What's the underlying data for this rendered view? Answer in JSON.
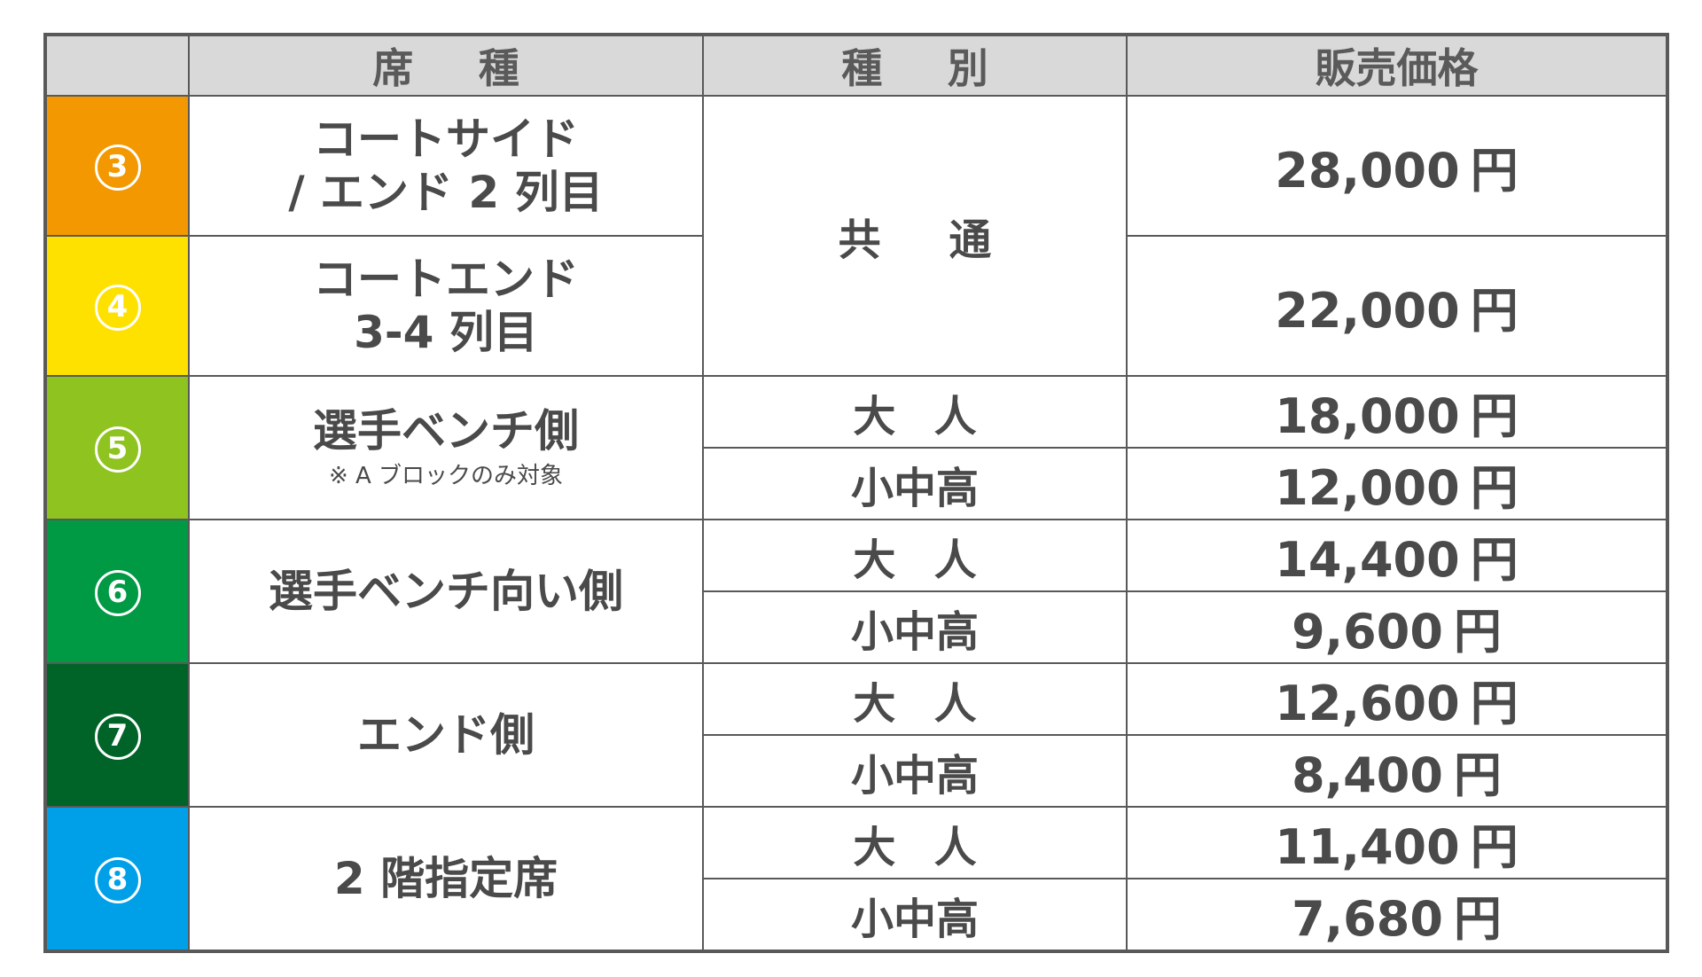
{
  "header": {
    "col_num": "",
    "col_seat": "席種",
    "col_type": "種別",
    "col_price": "販売価格"
  },
  "currency": "円",
  "colors": {
    "border": "#595959",
    "header_bg": "#d9d9d9",
    "text": "#4a4a4a"
  },
  "rows": [
    {
      "number": "3",
      "color": "#f39800",
      "seat_line1": "コートサイド",
      "seat_line2": "/ エンド 2 列目",
      "type": "共通",
      "price": "28,000"
    },
    {
      "number": "4",
      "color": "#ffe100",
      "seat_line1": "コートエンド",
      "seat_line2": "3-4 列目",
      "price": "22,000"
    },
    {
      "number": "5",
      "color": "#8fc31f",
      "seat": "選手ベンチ側",
      "note": "※ A ブロックのみ対象",
      "adult_label": "大人",
      "child_label": "小中高",
      "adult_price": "18,000",
      "child_price": "12,000"
    },
    {
      "number": "6",
      "color": "#009944",
      "seat": "選手ベンチ向い側",
      "adult_label": "大人",
      "child_label": "小中高",
      "adult_price": "14,400",
      "child_price": "9,600"
    },
    {
      "number": "7",
      "color": "#006428",
      "seat": "エンド側",
      "adult_label": "大人",
      "child_label": "小中高",
      "adult_price": "12,600",
      "child_price": "8,400"
    },
    {
      "number": "8",
      "color": "#00a0e9",
      "seat": "2 階指定席",
      "adult_label": "大人",
      "child_label": "小中高",
      "adult_price": "11,400",
      "child_price": "7,680"
    }
  ]
}
